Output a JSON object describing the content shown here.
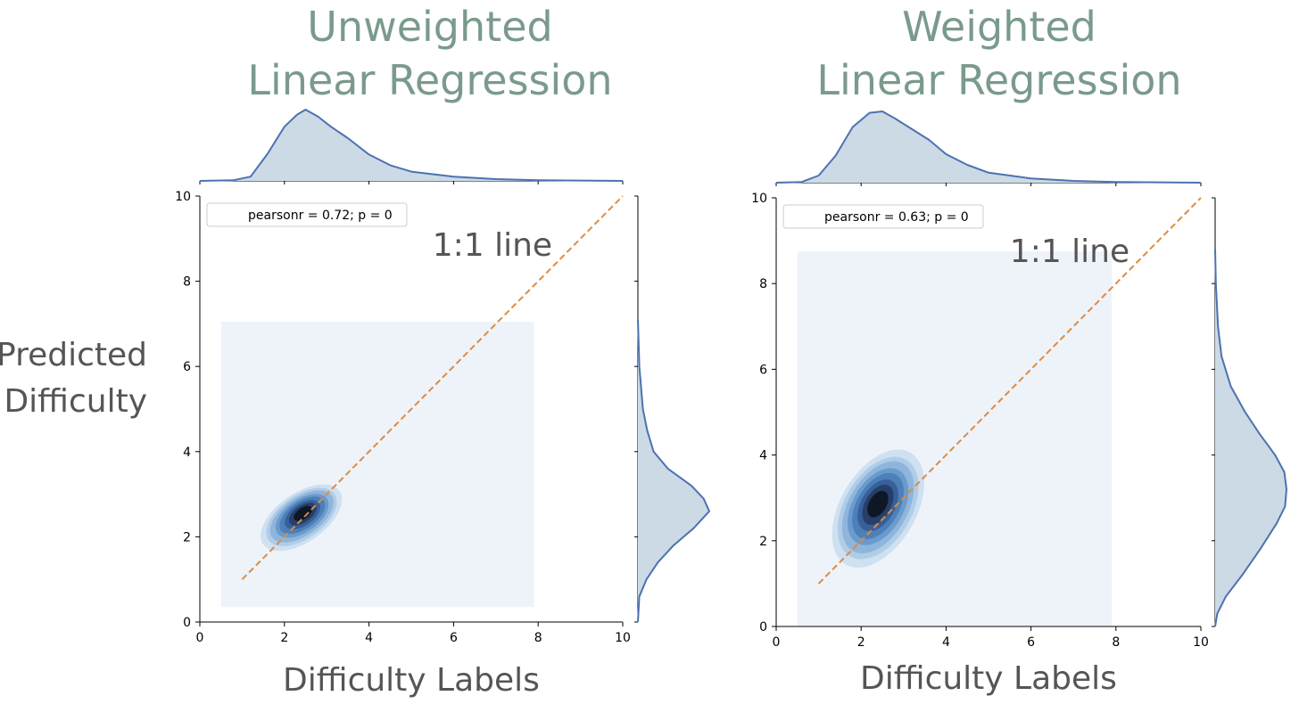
{
  "ylabel": "Predicted\nDifficulty",
  "colors": {
    "title": "#7a9a8c",
    "kde_line": "#4c72b0",
    "kde_fill": "#ccdae6",
    "diag": "#e08a3e",
    "bg_rect": "#eef3fa",
    "contours": [
      "#cfe0f1",
      "#b0cde8",
      "#8fb5dc",
      "#6a9bcd",
      "#4d7fb9",
      "#37609a",
      "#253f6a",
      "#0f1726"
    ]
  },
  "chart_data": [
    {
      "type": "scatter",
      "subtype": "jointplot-kde",
      "title": "Unweighted\nLinear Regression",
      "xlabel": "Difficulty Labels",
      "ylabel": "Predicted Difficulty",
      "xlim": [
        0,
        10
      ],
      "ylim": [
        0,
        10
      ],
      "xticks": [
        0,
        2,
        4,
        6,
        8,
        10
      ],
      "yticks": [
        0,
        2,
        4,
        6,
        8,
        10
      ],
      "legend": "pearsonr = 0.72; p = 0",
      "legend_loc": "upper left",
      "annotation": "1:1 line",
      "annotation_pos": [
        5.5,
        8.6
      ],
      "diagonal": [
        [
          1,
          1
        ],
        [
          10,
          10
        ]
      ],
      "background_rect": {
        "x": [
          0.5,
          7.9
        ],
        "y": [
          0.35,
          7.05
        ]
      },
      "kde_center": [
        2.4,
        2.45
      ],
      "kde_spread": [
        1.05,
        0.55
      ],
      "kde_angle_deg": 35,
      "kde_levels": 8,
      "x_marginal": {
        "x": [
          0,
          0.8,
          1.2,
          1.6,
          2.0,
          2.3,
          2.5,
          2.8,
          3.1,
          3.5,
          4.0,
          4.5,
          5.0,
          6.0,
          7.0,
          8.0,
          10
        ],
        "density": [
          0,
          0.01,
          0.06,
          0.38,
          0.76,
          0.93,
          1.0,
          0.9,
          0.76,
          0.6,
          0.37,
          0.22,
          0.13,
          0.06,
          0.025,
          0.01,
          0
        ]
      },
      "y_marginal": {
        "y": [
          0,
          0.6,
          1.0,
          1.4,
          1.8,
          2.2,
          2.6,
          2.9,
          3.2,
          3.6,
          4.0,
          4.5,
          5.0,
          6.0,
          7.1
        ],
        "density": [
          0,
          0.02,
          0.12,
          0.28,
          0.5,
          0.78,
          1.0,
          0.92,
          0.75,
          0.42,
          0.22,
          0.13,
          0.07,
          0.02,
          0
        ]
      }
    },
    {
      "type": "scatter",
      "subtype": "jointplot-kde",
      "title": "Weighted\nLinear Regression",
      "xlabel": "Difficulty Labels",
      "ylabel": "",
      "xlim": [
        0,
        10
      ],
      "ylim": [
        0,
        10
      ],
      "xticks": [
        0,
        2,
        4,
        6,
        8,
        10
      ],
      "yticks": [
        0,
        2,
        4,
        6,
        8,
        10
      ],
      "legend": "pearsonr = 0.63; p = 0",
      "legend_loc": "upper left",
      "annotation": "1:1 line",
      "annotation_pos": [
        5.5,
        8.5
      ],
      "diagonal": [
        [
          1,
          1
        ],
        [
          10,
          10
        ]
      ],
      "background_rect": {
        "x": [
          0.5,
          7.9
        ],
        "y": [
          0.0,
          8.75
        ]
      },
      "kde_center": [
        2.4,
        2.75
      ],
      "kde_spread": [
        1.45,
        0.85
      ],
      "kde_angle_deg": 60,
      "kde_levels": 8,
      "x_marginal": {
        "x": [
          0,
          0.6,
          1.0,
          1.4,
          1.8,
          2.2,
          2.5,
          2.8,
          3.2,
          3.6,
          4.0,
          4.5,
          5.0,
          6.0,
          7.0,
          8.0,
          10
        ],
        "density": [
          0,
          0.01,
          0.1,
          0.38,
          0.78,
          0.98,
          1.0,
          0.9,
          0.75,
          0.6,
          0.4,
          0.25,
          0.14,
          0.06,
          0.025,
          0.01,
          0
        ]
      },
      "y_marginal": {
        "y": [
          0,
          0.3,
          0.7,
          1.2,
          1.8,
          2.4,
          2.8,
          3.2,
          3.6,
          4.0,
          4.5,
          5.0,
          5.6,
          6.3,
          7.0,
          8.0,
          8.8
        ],
        "density": [
          0,
          0.03,
          0.15,
          0.38,
          0.63,
          0.86,
          0.98,
          1.0,
          0.97,
          0.84,
          0.62,
          0.42,
          0.22,
          0.09,
          0.04,
          0.01,
          0
        ]
      }
    }
  ]
}
